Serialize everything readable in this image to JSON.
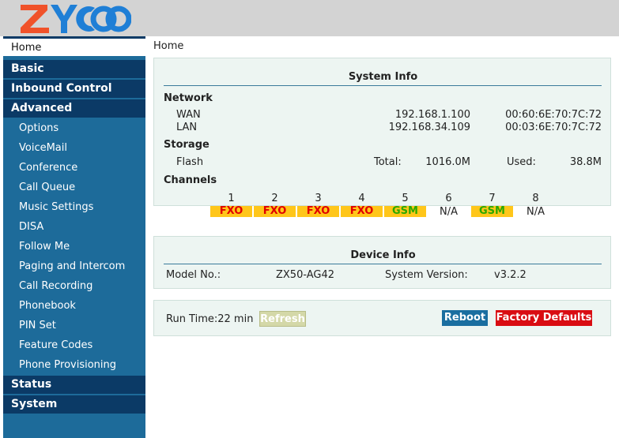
{
  "header": {
    "logo_text": "ZYCOO",
    "colors": {
      "logo_orange": "#f0522a",
      "logo_blue": "#1f7fd6",
      "header_bg": "#d3d3d3"
    }
  },
  "sidebar": {
    "home": "Home",
    "items": [
      {
        "label": "Basic",
        "type": "main"
      },
      {
        "label": "Inbound Control",
        "type": "main"
      },
      {
        "label": "Advanced",
        "type": "main"
      },
      {
        "label": "Options",
        "type": "sub"
      },
      {
        "label": "VoiceMail",
        "type": "sub"
      },
      {
        "label": "Conference",
        "type": "sub"
      },
      {
        "label": "Call Queue",
        "type": "sub"
      },
      {
        "label": "Music Settings",
        "type": "sub"
      },
      {
        "label": "DISA",
        "type": "sub"
      },
      {
        "label": "Follow Me",
        "type": "sub"
      },
      {
        "label": "Paging and Intercom",
        "type": "sub"
      },
      {
        "label": "Call Recording",
        "type": "sub"
      },
      {
        "label": "Phonebook",
        "type": "sub"
      },
      {
        "label": "PIN Set",
        "type": "sub"
      },
      {
        "label": "Feature Codes",
        "type": "sub"
      },
      {
        "label": "Phone Provisioning",
        "type": "sub"
      },
      {
        "label": "Status",
        "type": "main"
      },
      {
        "label": "System",
        "type": "main"
      }
    ]
  },
  "breadcrumb": "Home",
  "system_info": {
    "title": "System Info",
    "network": {
      "label": "Network",
      "wan": {
        "label": "WAN",
        "ip": "192.168.1.100",
        "mac": "00:60:6E:70:7C:72"
      },
      "lan": {
        "label": "LAN",
        "ip": "192.168.34.109",
        "mac": "00:03:6E:70:7C:72"
      }
    },
    "storage": {
      "label": "Storage",
      "flash": {
        "label": "Flash",
        "total_label": "Total:",
        "total": "1016.0M",
        "used_label": "Used:",
        "used": "38.8M"
      }
    },
    "channels": {
      "label": "Channels",
      "items": [
        {
          "num": "1",
          "status": "FXO",
          "kind": "fxo"
        },
        {
          "num": "2",
          "status": "FXO",
          "kind": "fxo"
        },
        {
          "num": "3",
          "status": "FXO",
          "kind": "fxo"
        },
        {
          "num": "4",
          "status": "FXO",
          "kind": "fxo"
        },
        {
          "num": "5",
          "status": "GSM",
          "kind": "gsm"
        },
        {
          "num": "6",
          "status": "N/A",
          "kind": "na"
        },
        {
          "num": "7",
          "status": "GSM",
          "kind": "gsm"
        },
        {
          "num": "8",
          "status": "N/A",
          "kind": "na"
        }
      ]
    }
  },
  "device_info": {
    "title": "Device Info",
    "model_label": "Model No.:",
    "model": "ZX50-AG42",
    "version_label": "System Version:",
    "version": "v3.2.2"
  },
  "runtime": {
    "label": "Run Time:22 min",
    "refresh": "Refresh",
    "reboot": "Reboot",
    "factory": "Factory Defaults"
  }
}
